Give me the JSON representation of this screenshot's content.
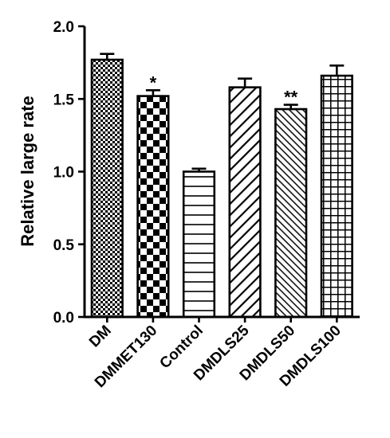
{
  "chart_data": {
    "type": "bar",
    "title": "",
    "xlabel": "",
    "ylabel": "Relative large rate",
    "ylim": [
      0,
      2.0
    ],
    "yticks": [
      "0.0",
      "0.5",
      "1.0",
      "1.5",
      "2.0"
    ],
    "categories": [
      "DM",
      "DMMET130",
      "Control",
      "DMDLS25",
      "DMDLS50",
      "DMDLS100"
    ],
    "values": [
      1.77,
      1.52,
      1.0,
      1.58,
      1.43,
      1.66
    ],
    "errors": [
      0.04,
      0.04,
      0.02,
      0.06,
      0.03,
      0.07
    ],
    "annotations": [
      "",
      "*",
      "",
      "",
      "**",
      ""
    ],
    "patterns": [
      "dotted-checker",
      "large-checker",
      "horizontal-lines",
      "diagonal-lines",
      "dense-diagonal-lines",
      "grid"
    ],
    "bar_color": "#000000",
    "fill_color": "#ffffff",
    "grid": false,
    "legend": "none"
  }
}
